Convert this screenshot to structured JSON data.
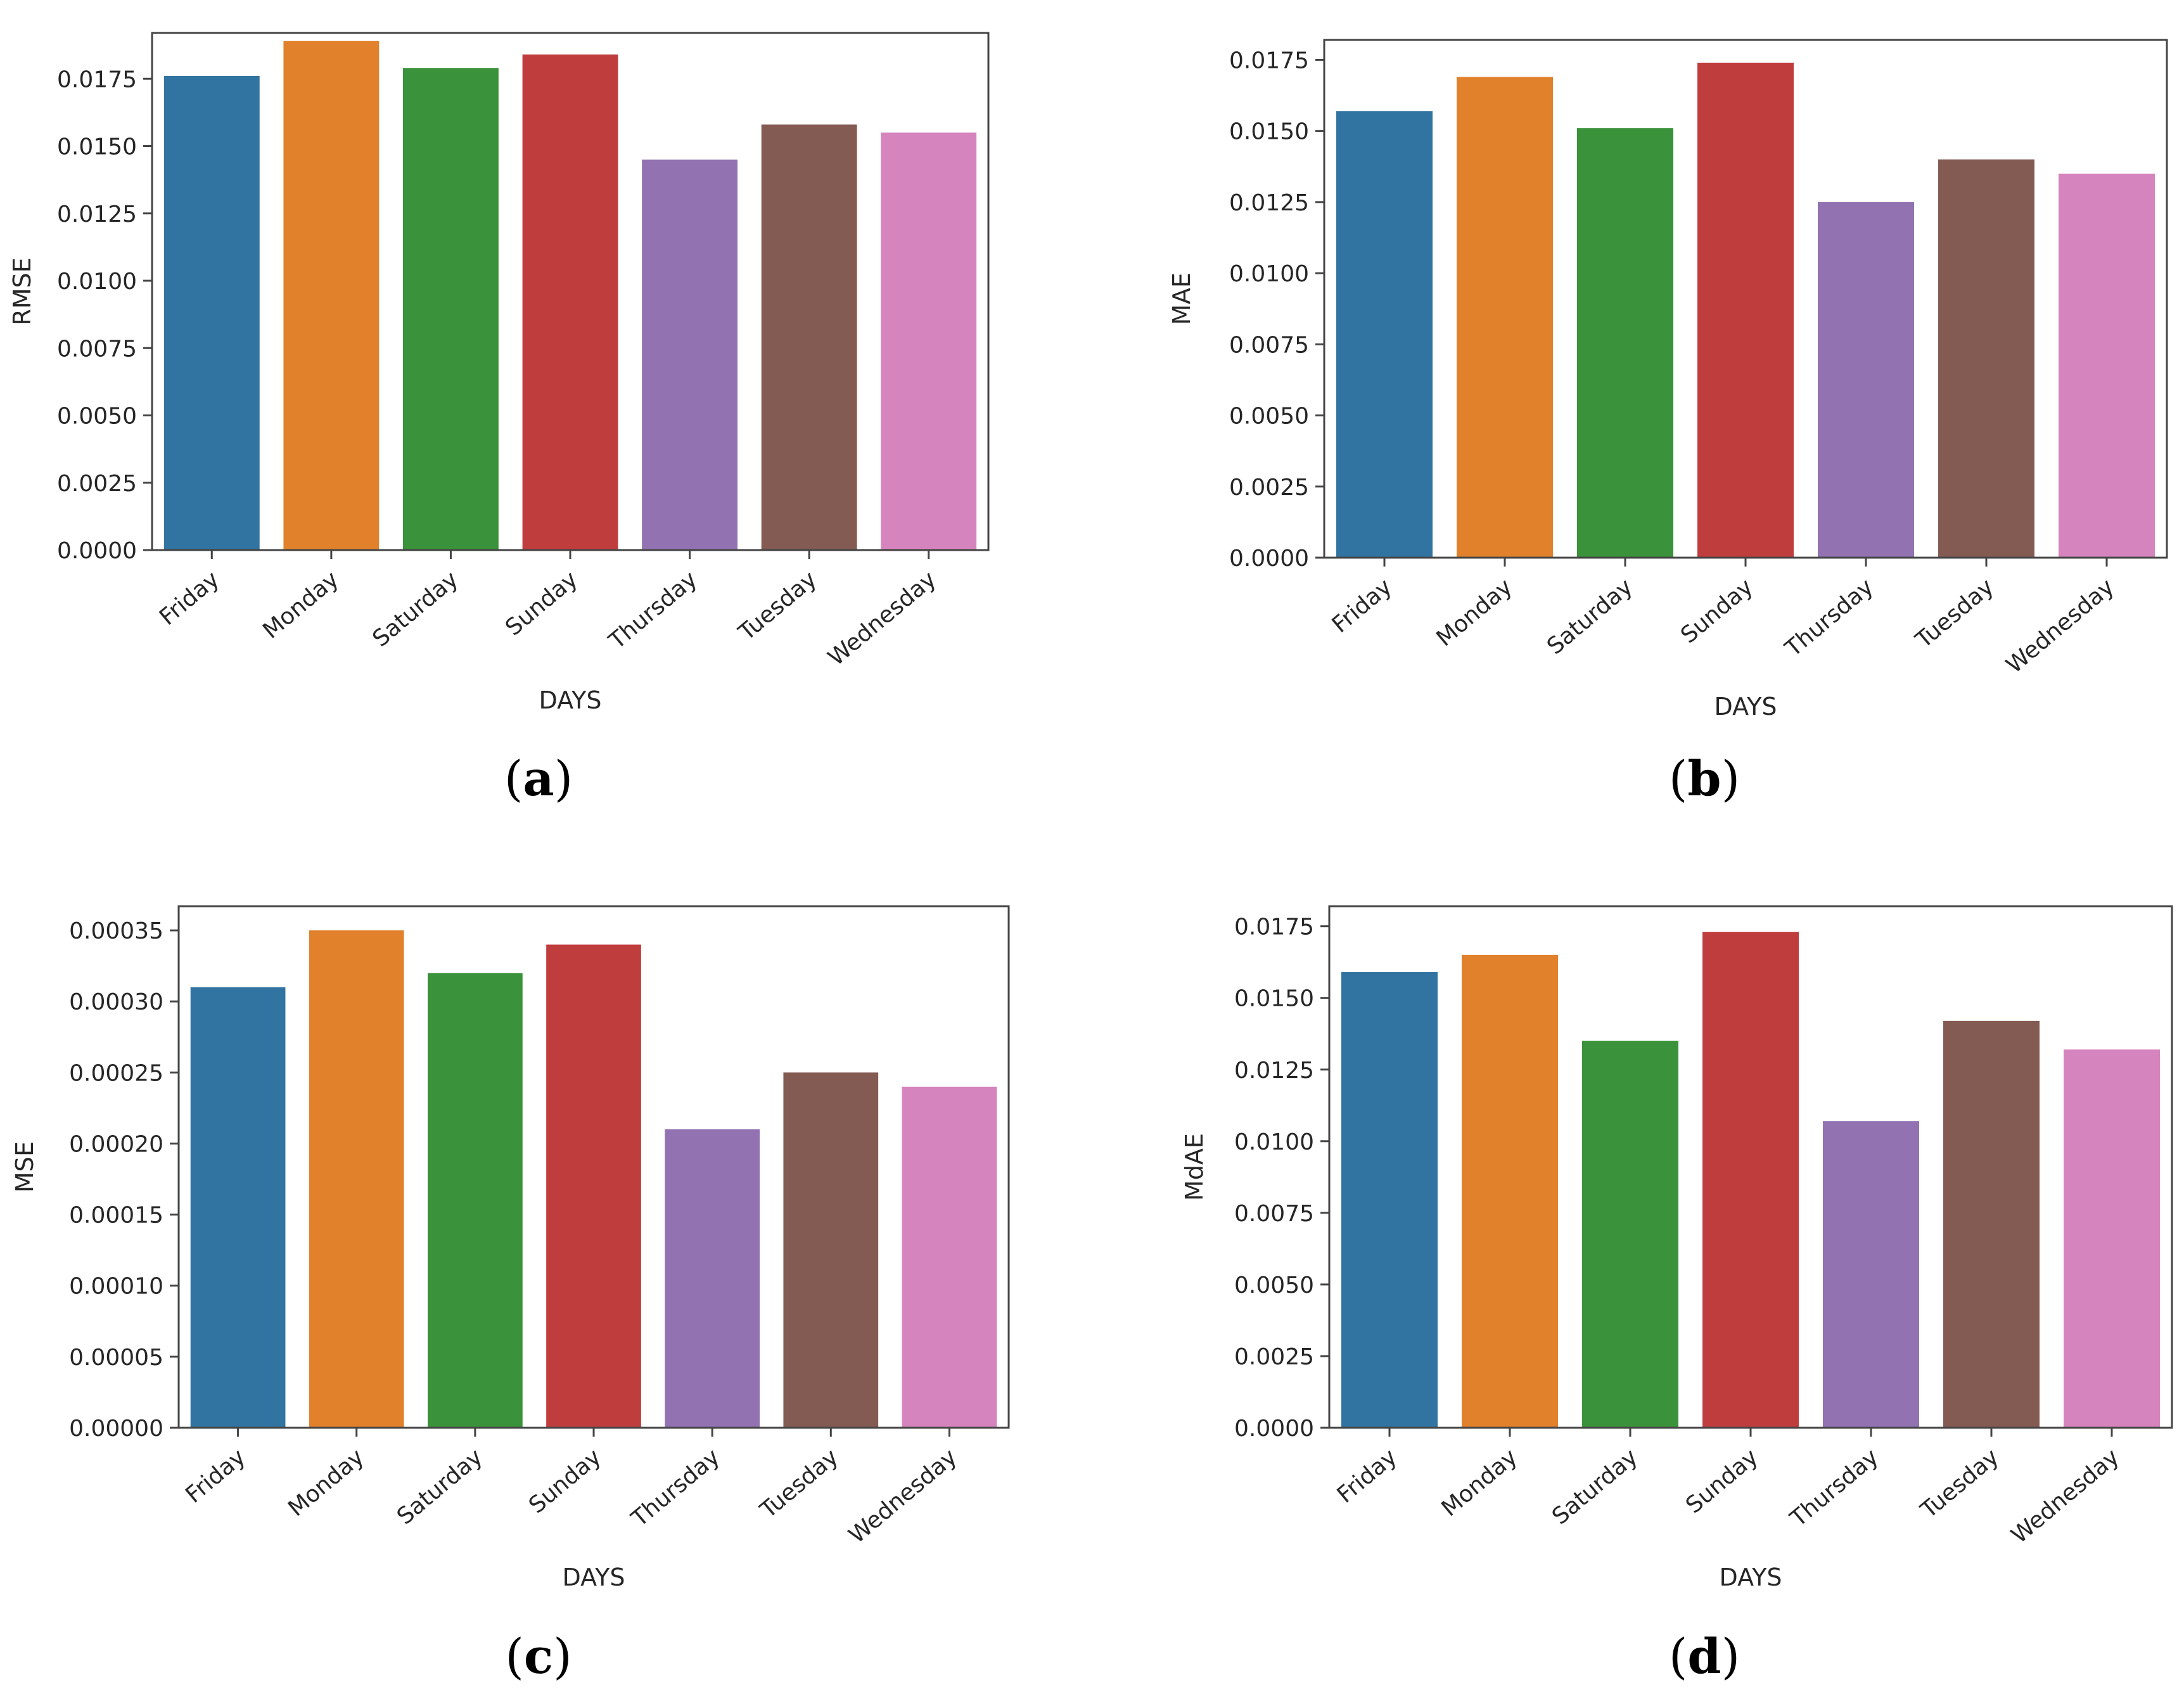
{
  "chart_data": [
    {
      "panel": "a",
      "caption": "(a)",
      "caption_letter": "a",
      "type": "bar",
      "title": "",
      "xlabel": "DAYS",
      "ylabel": "RMSE",
      "categories": [
        "Friday",
        "Monday",
        "Saturday",
        "Sunday",
        "Thursday",
        "Tuesday",
        "Wednesday"
      ],
      "values": [
        0.0176,
        0.0189,
        0.0179,
        0.0184,
        0.0145,
        0.0158,
        0.0155
      ],
      "ylim": [
        0,
        0.0192
      ],
      "yticks": [
        0,
        0.0025,
        0.005,
        0.0075,
        0.01,
        0.0125,
        0.015,
        0.0175
      ],
      "ytick_labels": [
        "0.0000",
        "0.0025",
        "0.0050",
        "0.0075",
        "0.0100",
        "0.0125",
        "0.0150",
        "0.0175"
      ],
      "grid": false,
      "legend": "none"
    },
    {
      "panel": "b",
      "caption": "(b)",
      "caption_letter": "b",
      "type": "bar",
      "title": "",
      "xlabel": "DAYS",
      "ylabel": "MAE",
      "categories": [
        "Friday",
        "Monday",
        "Saturday",
        "Sunday",
        "Thursday",
        "Tuesday",
        "Wednesday"
      ],
      "values": [
        0.0157,
        0.0169,
        0.0151,
        0.0174,
        0.0125,
        0.014,
        0.0135
      ],
      "ylim": [
        0,
        0.0182
      ],
      "yticks": [
        0,
        0.0025,
        0.005,
        0.0075,
        0.01,
        0.0125,
        0.015,
        0.0175
      ],
      "ytick_labels": [
        "0.0000",
        "0.0025",
        "0.0050",
        "0.0075",
        "0.0100",
        "0.0125",
        "0.0150",
        "0.0175"
      ],
      "grid": false,
      "legend": "none"
    },
    {
      "panel": "c",
      "caption": "(c)",
      "caption_letter": "c",
      "type": "bar",
      "title": "",
      "xlabel": "DAYS",
      "ylabel": "MSE",
      "categories": [
        "Friday",
        "Monday",
        "Saturday",
        "Sunday",
        "Thursday",
        "Tuesday",
        "Wednesday"
      ],
      "values": [
        0.00031,
        0.00035,
        0.00032,
        0.00034,
        0.00021,
        0.00025,
        0.00024
      ],
      "ylim": [
        0,
        0.000367
      ],
      "yticks": [
        0,
        5e-05,
        0.0001,
        0.00015,
        0.0002,
        0.00025,
        0.0003,
        0.00035
      ],
      "ytick_labels": [
        "0.00000",
        "0.00005",
        "0.00010",
        "0.00015",
        "0.00020",
        "0.00025",
        "0.00030",
        "0.00035"
      ],
      "grid": false,
      "legend": "none"
    },
    {
      "panel": "d",
      "caption": "(d)",
      "caption_letter": "d",
      "type": "bar",
      "title": "",
      "xlabel": "DAYS",
      "ylabel": "MdAE",
      "categories": [
        "Friday",
        "Monday",
        "Saturday",
        "Sunday",
        "Thursday",
        "Tuesday",
        "Wednesday"
      ],
      "values": [
        0.0159,
        0.0165,
        0.0135,
        0.0173,
        0.0107,
        0.0142,
        0.0132
      ],
      "ylim": [
        0,
        0.0182
      ],
      "yticks": [
        0,
        0.0025,
        0.005,
        0.0075,
        0.01,
        0.0125,
        0.015,
        0.0175
      ],
      "ytick_labels": [
        "0.0000",
        "0.0025",
        "0.0050",
        "0.0075",
        "0.0100",
        "0.0125",
        "0.0150",
        "0.0175"
      ],
      "grid": false,
      "legend": "none"
    }
  ],
  "colors": {
    "bars": [
      "#3274a1",
      "#e1812c",
      "#3a923a",
      "#c03d3e",
      "#9372b2",
      "#845b53",
      "#d684bd"
    ],
    "axis": "#444444",
    "text": "#262626",
    "caption": "#000000"
  }
}
